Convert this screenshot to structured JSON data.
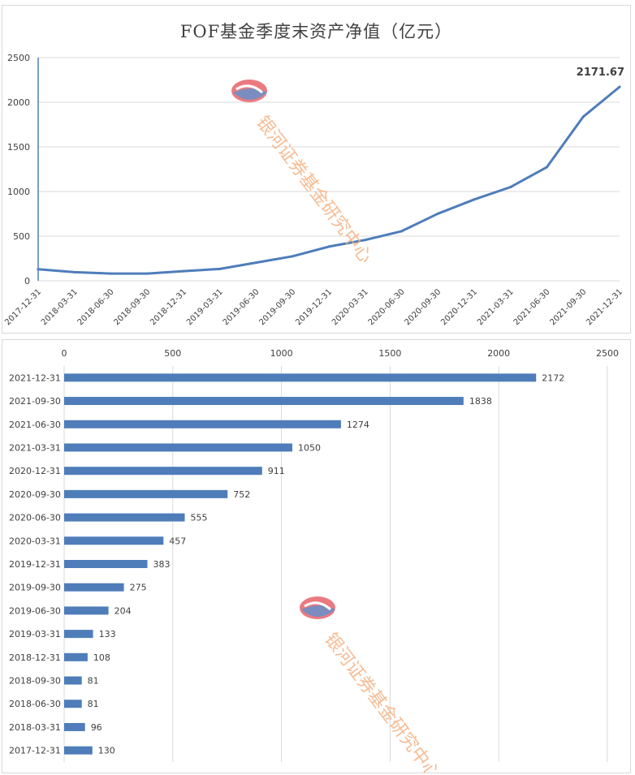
{
  "chart_data": [
    {
      "type": "line",
      "title": "FOF基金季度末资产净值（亿元）",
      "categories": [
        "2017-12-31",
        "2018-03-31",
        "2018-06-30",
        "2018-09-30",
        "2018-12-31",
        "2019-03-31",
        "2019-06-30",
        "2019-09-30",
        "2019-12-31",
        "2020-03-31",
        "2020-06-30",
        "2020-09-30",
        "2020-12-31",
        "2021-03-31",
        "2021-06-30",
        "2021-09-30",
        "2021-12-31"
      ],
      "series": [
        {
          "values": [
            130,
            96,
            81,
            81,
            108,
            133,
            204,
            275,
            383,
            457,
            555,
            752,
            911,
            1050,
            1274,
            1838,
            2171.67
          ]
        }
      ],
      "ylim": [
        0,
        2500
      ],
      "yticks": [
        "0",
        "500",
        "1000",
        "1500",
        "2000",
        "2500"
      ],
      "annotation": "2171.67",
      "grid": true,
      "color": "#4e7dba"
    },
    {
      "type": "bar",
      "orientation": "horizontal",
      "categories": [
        "2021-12-31",
        "2021-09-30",
        "2021-06-30",
        "2021-03-31",
        "2020-12-31",
        "2020-09-30",
        "2020-06-30",
        "2020-03-31",
        "2019-12-31",
        "2019-09-30",
        "2019-06-30",
        "2019-03-31",
        "2018-12-31",
        "2018-09-30",
        "2018-06-30",
        "2018-03-31",
        "2017-12-31"
      ],
      "values": [
        2172,
        1838,
        1274,
        1050,
        911,
        752,
        555,
        457,
        383,
        275,
        204,
        133,
        108,
        81,
        81,
        96,
        130
      ],
      "xlim": [
        0,
        2500
      ],
      "xticks": [
        "0",
        "500",
        "1000",
        "1500",
        "2000",
        "2500"
      ],
      "grid": true,
      "color": "#4e7dba"
    }
  ],
  "watermark": {
    "text": "银河证券基金研究中心",
    "color": "#f4b183",
    "logo_colors": [
      "#e8636a",
      "#6f8fc6"
    ]
  }
}
